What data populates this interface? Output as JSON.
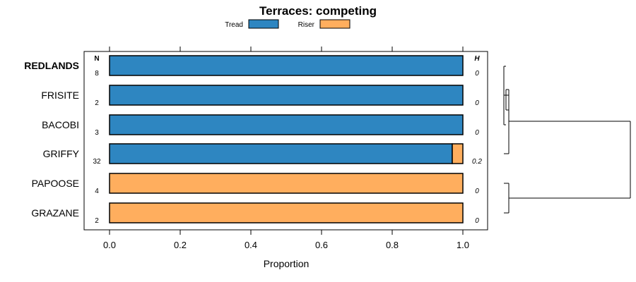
{
  "chart_data": {
    "type": "bar",
    "orientation": "horizontal",
    "stacked": true,
    "title": "Terraces: competing",
    "xlabel": "Proportion",
    "xlim": [
      -0.07,
      1.07
    ],
    "xticks": [
      "0.0",
      "0.2",
      "0.4",
      "0.6",
      "0.8",
      "1.0"
    ],
    "xtick_values": [
      0,
      0.2,
      0.4,
      0.6,
      0.8,
      1.0
    ],
    "legend": {
      "placement": "top",
      "entries": [
        "Tread",
        "Riser"
      ]
    },
    "column_headers": {
      "n": "N",
      "h": "H"
    },
    "categories": [
      "REDLANDS",
      "FRISITE",
      "BACOBI",
      "GRIFFY",
      "PAPOOSE",
      "GRAZANE"
    ],
    "highlight_category": "REDLANDS",
    "n": [
      "8",
      "2",
      "3",
      "32",
      "4",
      "2"
    ],
    "h": [
      "0",
      "0",
      "0",
      "0.2",
      "0",
      "0"
    ],
    "series": [
      {
        "name": "Tread",
        "color": "#2E86C1",
        "values": [
          1.0,
          1.0,
          1.0,
          0.97,
          0.0,
          0.0
        ]
      },
      {
        "name": "Riser",
        "color": "#FFAE5E",
        "values": [
          0.0,
          0.0,
          0.0,
          0.03,
          1.0,
          1.0
        ]
      }
    ],
    "dendrogram": {
      "description": "hierarchical clustering of categories",
      "clusters": [
        {
          "members": [
            "REDLANDS",
            "FRISITE",
            "BACOBI",
            "GRIFFY"
          ]
        },
        {
          "members": [
            "PAPOOSE",
            "GRAZANE"
          ]
        }
      ]
    }
  }
}
